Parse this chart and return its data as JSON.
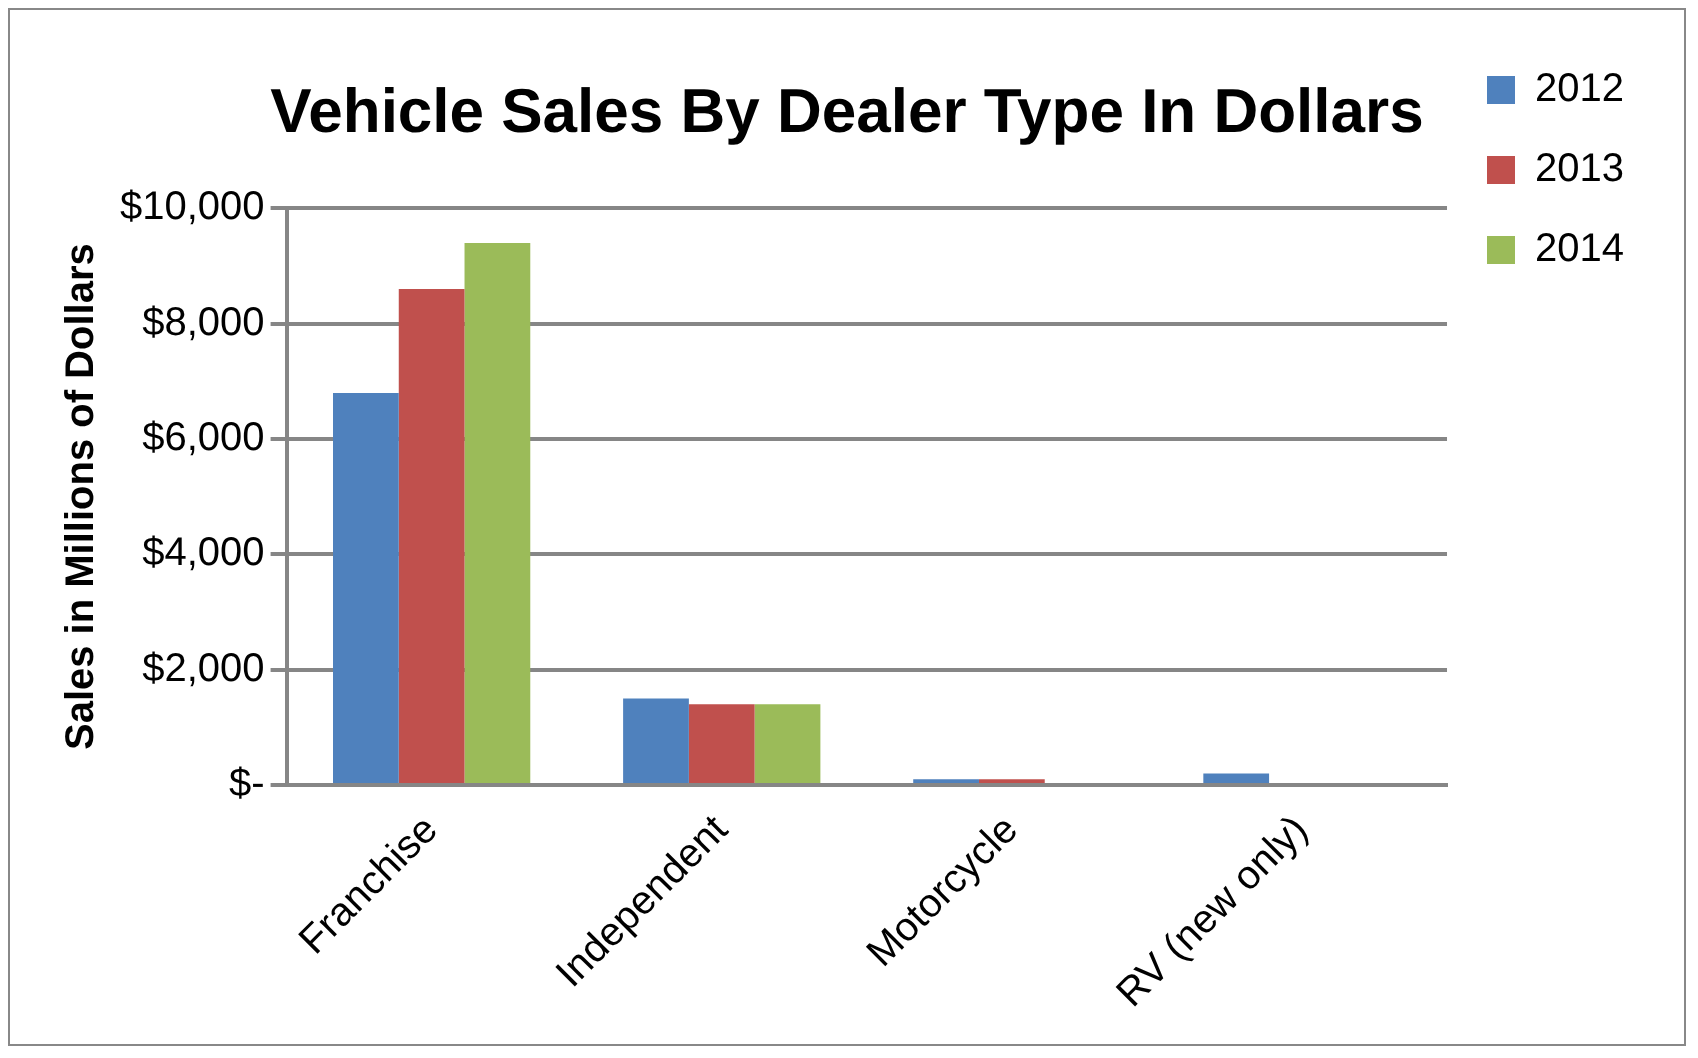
{
  "chart_data": {
    "type": "bar",
    "title": "Vehicle Sales By Dealer Type In Dollars",
    "ylabel": "Sales in Millions of Dollars",
    "categories": [
      "Franchise",
      "Independent",
      "Motorcycle",
      "RV (new only)"
    ],
    "series": [
      {
        "name": "2012",
        "color": "#4f81bd",
        "values": [
          6800,
          1500,
          100,
          200
        ]
      },
      {
        "name": "2013",
        "color": "#c0504d",
        "values": [
          8600,
          1400,
          100,
          null
        ]
      },
      {
        "name": "2014",
        "color": "#9bbb59",
        "values": [
          9400,
          1400,
          null,
          null
        ]
      }
    ],
    "ylim": [
      0,
      10000
    ],
    "yticks": [
      {
        "value": 0,
        "label": "$-"
      },
      {
        "value": 2000,
        "label": "$2,000"
      },
      {
        "value": 4000,
        "label": "$4,000"
      },
      {
        "value": 6000,
        "label": "$6,000"
      },
      {
        "value": 8000,
        "label": "$8,000"
      },
      {
        "value": 10000,
        "label": "$10,000"
      }
    ],
    "grid": "y",
    "legend": "right"
  }
}
